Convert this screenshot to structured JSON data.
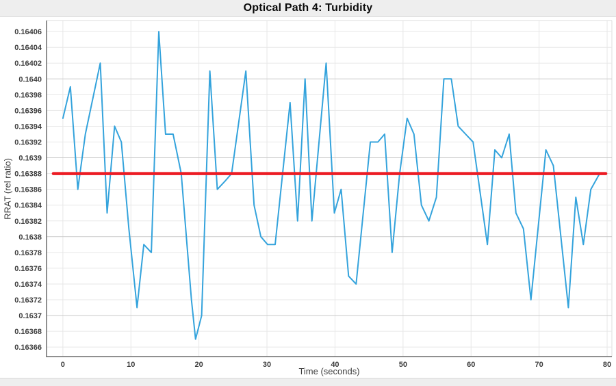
{
  "window": {
    "title": "Optical Path 4: Turbidity"
  },
  "chart_data": {
    "type": "line",
    "title": "Optical Path 4: Turbidity",
    "xlabel": "Time (seconds)",
    "ylabel": "RRAT (rel ratio)",
    "xlim": [
      -2.4,
      80.7
    ],
    "ylim": [
      0.163648,
      0.164074
    ],
    "grid": true,
    "legend": "none",
    "xticks": [
      0,
      10,
      20,
      30,
      40,
      50,
      60,
      70,
      80
    ],
    "yticks": [
      {
        "v": 0.16366,
        "label": "0.16366",
        "major": false
      },
      {
        "v": 0.16368,
        "label": "0.16368",
        "major": false
      },
      {
        "v": 0.1637,
        "label": "0.1637",
        "major": true
      },
      {
        "v": 0.16372,
        "label": "0.16372",
        "major": false
      },
      {
        "v": 0.16374,
        "label": "0.16374",
        "major": false
      },
      {
        "v": 0.16376,
        "label": "0.16376",
        "major": false
      },
      {
        "v": 0.16378,
        "label": "0.16378",
        "major": false
      },
      {
        "v": 0.1638,
        "label": "0.1638",
        "major": true
      },
      {
        "v": 0.16382,
        "label": "0.16382",
        "major": false
      },
      {
        "v": 0.16384,
        "label": "0.16384",
        "major": false
      },
      {
        "v": 0.16386,
        "label": "0.16386",
        "major": false
      },
      {
        "v": 0.16388,
        "label": "0.16388",
        "major": false
      },
      {
        "v": 0.1639,
        "label": "0.1639",
        "major": true
      },
      {
        "v": 0.16392,
        "label": "0.16392",
        "major": false
      },
      {
        "v": 0.16394,
        "label": "0.16394",
        "major": false
      },
      {
        "v": 0.16396,
        "label": "0.16396",
        "major": false
      },
      {
        "v": 0.16398,
        "label": "0.16398",
        "major": false
      },
      {
        "v": 0.164,
        "label": "0.1640",
        "major": true
      },
      {
        "v": 0.16402,
        "label": "0.16402",
        "major": false
      },
      {
        "v": 0.16404,
        "label": "0.16404",
        "major": false
      },
      {
        "v": 0.16406,
        "label": "0.16406",
        "major": false
      }
    ],
    "series": [
      {
        "name": "turbidity-rrat",
        "color": "#34a3dc",
        "stroke_width": 2,
        "points": [
          [
            0.0,
            0.16395
          ],
          [
            1.1,
            0.16399
          ],
          [
            2.2,
            0.16386
          ],
          [
            3.3,
            0.16393
          ],
          [
            5.5,
            0.16402
          ],
          [
            6.5,
            0.16383
          ],
          [
            7.6,
            0.16394
          ],
          [
            8.6,
            0.16392
          ],
          [
            9.7,
            0.16381
          ],
          [
            10.9,
            0.16371
          ],
          [
            11.9,
            0.16379
          ],
          [
            13.0,
            0.16378
          ],
          [
            14.1,
            0.16406
          ],
          [
            15.1,
            0.16393
          ],
          [
            16.2,
            0.16393
          ],
          [
            17.4,
            0.16388
          ],
          [
            18.9,
            0.16372
          ],
          [
            19.5,
            0.16367
          ],
          [
            20.4,
            0.1637
          ],
          [
            21.6,
            0.16401
          ],
          [
            22.7,
            0.16386
          ],
          [
            23.8,
            0.16387
          ],
          [
            24.8,
            0.16388
          ],
          [
            26.9,
            0.16401
          ],
          [
            28.1,
            0.16384
          ],
          [
            29.1,
            0.1638
          ],
          [
            30.1,
            0.16379
          ],
          [
            31.2,
            0.16379
          ],
          [
            33.4,
            0.16397
          ],
          [
            34.5,
            0.16382
          ],
          [
            35.6,
            0.164
          ],
          [
            36.6,
            0.16382
          ],
          [
            38.7,
            0.16402
          ],
          [
            39.9,
            0.16383
          ],
          [
            40.9,
            0.16386
          ],
          [
            42.0,
            0.16375
          ],
          [
            43.1,
            0.16374
          ],
          [
            45.2,
            0.16392
          ],
          [
            46.3,
            0.16392
          ],
          [
            47.3,
            0.16393
          ],
          [
            48.4,
            0.16378
          ],
          [
            49.5,
            0.16388
          ],
          [
            50.6,
            0.16395
          ],
          [
            51.6,
            0.16393
          ],
          [
            52.7,
            0.16384
          ],
          [
            53.8,
            0.16382
          ],
          [
            54.9,
            0.16385
          ],
          [
            56.0,
            0.164
          ],
          [
            57.1,
            0.164
          ],
          [
            58.1,
            0.16394
          ],
          [
            59.2,
            0.16393
          ],
          [
            60.3,
            0.16392
          ],
          [
            62.4,
            0.16379
          ],
          [
            63.5,
            0.16391
          ],
          [
            64.5,
            0.1639
          ],
          [
            65.6,
            0.16393
          ],
          [
            66.6,
            0.16383
          ],
          [
            67.7,
            0.16381
          ],
          [
            68.8,
            0.16372
          ],
          [
            71.0,
            0.16391
          ],
          [
            72.1,
            0.16389
          ],
          [
            74.3,
            0.16371
          ],
          [
            75.4,
            0.16385
          ],
          [
            76.5,
            0.16379
          ],
          [
            77.6,
            0.16386
          ],
          [
            78.9,
            0.16388
          ]
        ]
      }
    ],
    "mean_line": {
      "name": "mean-reference-line",
      "value": 0.16388,
      "x_start": -1.4,
      "x_end": 79.8,
      "color": "#ec1c24",
      "stroke_width": 4.5
    },
    "colors": {
      "grid_minor": "#e7e7e7",
      "grid_major": "#c9c9c9",
      "axis": "#6b6b6b",
      "frame_light": "#dedede",
      "tick_text": "#3d3d3d",
      "band_bg": "#eeeeee"
    }
  }
}
